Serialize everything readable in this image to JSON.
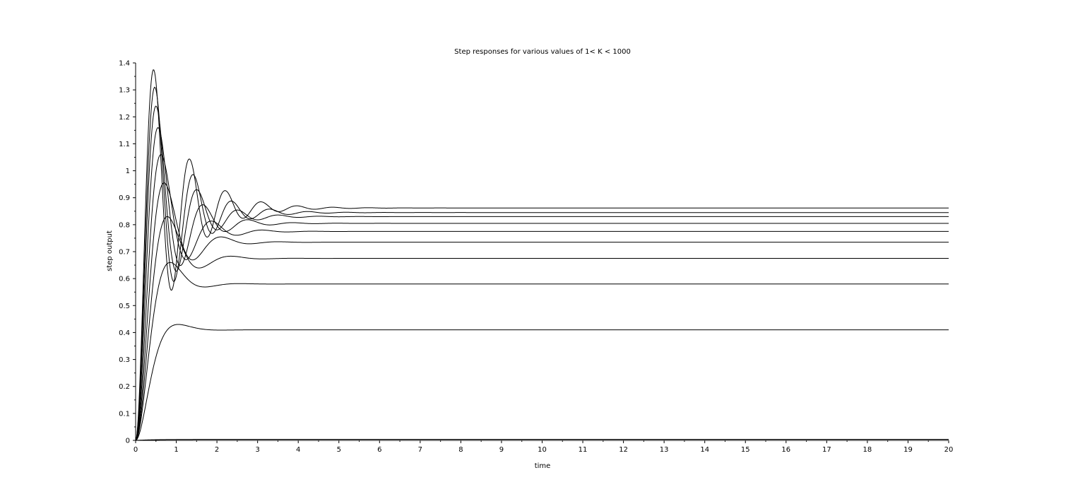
{
  "chart_data": {
    "type": "line",
    "title": "Step responses for various values of 1< K < 1000",
    "xlabel": "time",
    "ylabel": "step output",
    "xlim": [
      0,
      20
    ],
    "ylim": [
      0,
      1.4
    ],
    "xticks": [
      0,
      1,
      2,
      3,
      4,
      5,
      6,
      7,
      8,
      9,
      10,
      11,
      12,
      13,
      14,
      15,
      16,
      17,
      18,
      19,
      20
    ],
    "yticks": [
      0,
      0.1,
      0.2,
      0.3,
      0.4,
      0.5,
      0.6,
      0.7,
      0.8,
      0.9,
      1,
      1.1,
      1.2,
      1.3,
      1.4
    ],
    "xtick_labels": [
      "0",
      "1",
      "2",
      "3",
      "4",
      "5",
      "6",
      "7",
      "8",
      "9",
      "10",
      "11",
      "12",
      "13",
      "14",
      "15",
      "16",
      "17",
      "18",
      "19",
      "20"
    ],
    "ytick_labels": [
      "0",
      "0.1",
      "0.2",
      "0.3",
      "0.4",
      "0.5",
      "0.6",
      "0.7",
      "0.8",
      "0.9",
      "1",
      "1.1",
      "1.2",
      "1.3",
      "1.4"
    ],
    "grid": false,
    "legend": "none",
    "line_color": "#000000",
    "series": [
      {
        "final": 0.004,
        "peak": 0.004,
        "peak_time": 1.0,
        "rise_time": 0.5
      },
      {
        "final": 0.41,
        "peak": 0.43,
        "peak_time": 1.05,
        "rise_time": 0.65
      },
      {
        "final": 0.58,
        "peak": 0.66,
        "peak_time": 0.85,
        "rise_time": 0.5
      },
      {
        "final": 0.675,
        "peak": 0.83,
        "peak_time": 0.78,
        "rise_time": 0.42
      },
      {
        "final": 0.735,
        "peak": 0.955,
        "peak_time": 0.7,
        "rise_time": 0.38
      },
      {
        "final": 0.775,
        "peak": 1.06,
        "peak_time": 0.62,
        "rise_time": 0.34
      },
      {
        "final": 0.805,
        "peak": 1.16,
        "peak_time": 0.55,
        "rise_time": 0.3
      },
      {
        "final": 0.83,
        "peak": 1.24,
        "peak_time": 0.5,
        "rise_time": 0.27
      },
      {
        "final": 0.845,
        "peak": 1.31,
        "peak_time": 0.47,
        "rise_time": 0.25
      },
      {
        "final": 0.862,
        "peak": 1.375,
        "peak_time": 0.44,
        "rise_time": 0.22
      }
    ]
  }
}
